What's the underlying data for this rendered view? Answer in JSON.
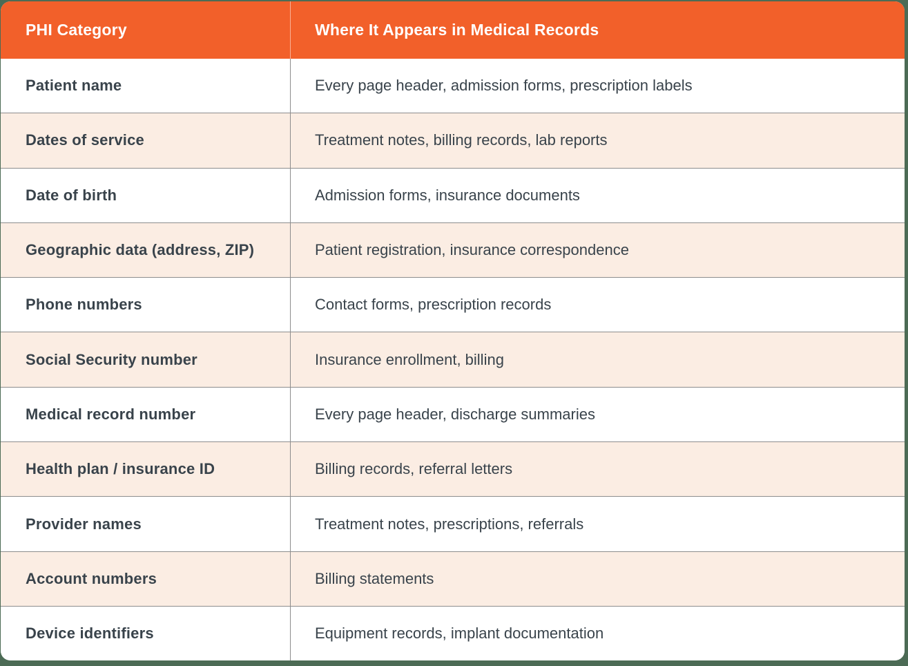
{
  "theme": {
    "page_background": "#4C6B55",
    "header_background": "#F2602A",
    "header_text_color": "#FFFFFF",
    "row_background": "#FFFFFF",
    "row_alt_background": "#FBEDE3",
    "grid_line_color": "#8C8C8C",
    "body_text_color": "#39434B"
  },
  "table": {
    "columns": [
      {
        "label": "PHI Category"
      },
      {
        "label": "Where It Appears in Medical Records"
      }
    ],
    "rows": [
      {
        "category": "Patient name",
        "location": "Every page header, admission forms, prescription labels"
      },
      {
        "category": "Dates of service",
        "location": "Treatment notes, billing records, lab reports"
      },
      {
        "category": "Date of birth",
        "location": "Admission forms, insurance documents"
      },
      {
        "category": "Geographic data (address, ZIP)",
        "location": "Patient registration, insurance correspondence"
      },
      {
        "category": "Phone numbers",
        "location": "Contact forms, prescription records"
      },
      {
        "category": "Social Security number",
        "location": "Insurance enrollment, billing"
      },
      {
        "category": "Medical record number",
        "location": "Every page header, discharge summaries"
      },
      {
        "category": "Health plan / insurance ID",
        "location": "Billing records, referral letters"
      },
      {
        "category": "Provider names",
        "location": "Treatment notes, prescriptions, referrals"
      },
      {
        "category": "Account numbers",
        "location": "Billing statements"
      },
      {
        "category": "Device identifiers",
        "location": "Equipment records, implant documentation"
      }
    ]
  }
}
